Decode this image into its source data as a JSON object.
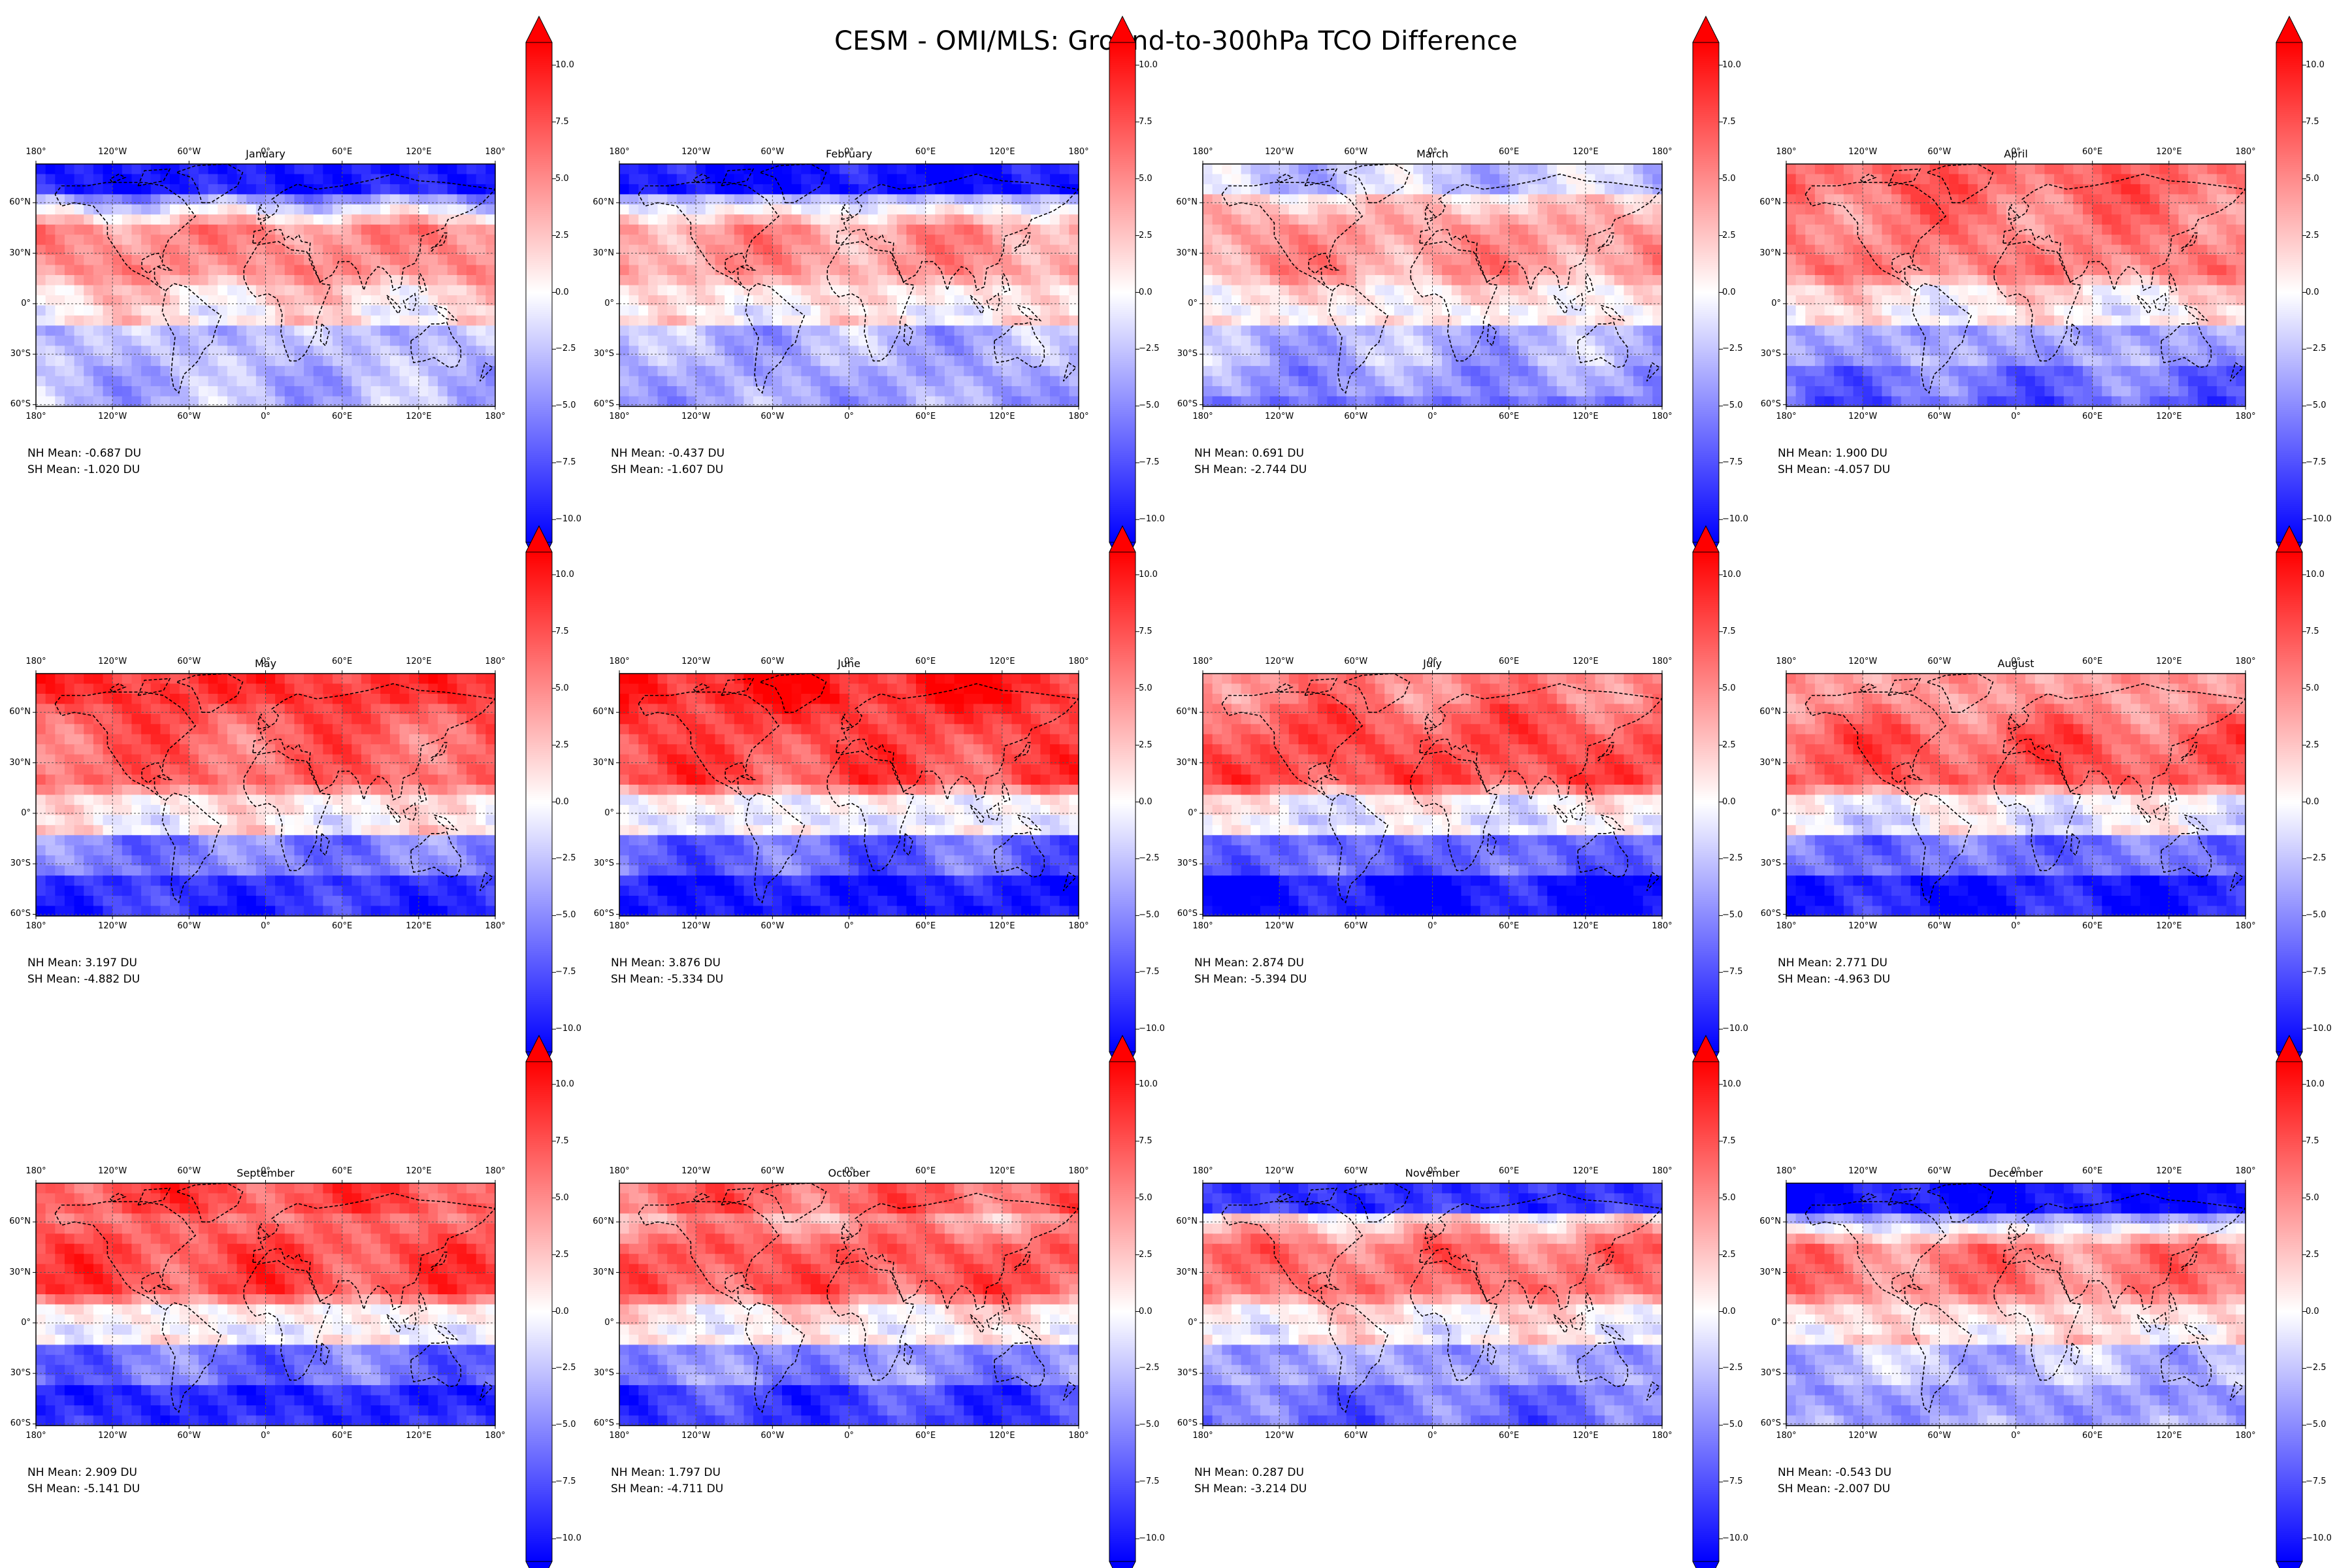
{
  "figure": {
    "title": "CESM - OMI/MLS: Ground-to-300hPa TCO Difference"
  },
  "axes": {
    "lon_ticks": [
      "180°",
      "120°W",
      "60°W",
      "0°",
      "60°E",
      "120°E",
      "180°"
    ],
    "lat_ticks": [
      "60°N",
      "30°N",
      "0°",
      "30°S",
      "60°S"
    ]
  },
  "colorbar": {
    "colormap": "bwr",
    "extend": "both",
    "vmin": -11,
    "vmax": 11,
    "ticks": [
      "10.0",
      "7.5",
      "5.0",
      "2.5",
      "0.0",
      "−2.5",
      "−5.0",
      "−7.5",
      "−10.0"
    ],
    "colors": {
      "low": "#0000ff",
      "mid": "#ffffff",
      "high": "#ff0000"
    }
  },
  "panels": [
    {
      "month": "January",
      "nh_mean": "NH Mean: -0.687 DU",
      "sh_mean": "SH Mean: -1.020 DU"
    },
    {
      "month": "February",
      "nh_mean": "NH Mean: -0.437 DU",
      "sh_mean": "SH Mean: -1.607 DU"
    },
    {
      "month": "March",
      "nh_mean": "NH Mean: 0.691 DU",
      "sh_mean": "SH Mean: -2.744 DU"
    },
    {
      "month": "April",
      "nh_mean": "NH Mean: 1.900 DU",
      "sh_mean": "SH Mean: -4.057 DU"
    },
    {
      "month": "May",
      "nh_mean": "NH Mean: 3.197 DU",
      "sh_mean": "SH Mean: -4.882 DU"
    },
    {
      "month": "June",
      "nh_mean": "NH Mean: 3.876 DU",
      "sh_mean": "SH Mean: -5.334 DU"
    },
    {
      "month": "July",
      "nh_mean": "NH Mean: 2.874 DU",
      "sh_mean": "SH Mean: -5.394 DU"
    },
    {
      "month": "August",
      "nh_mean": "NH Mean: 2.771 DU",
      "sh_mean": "SH Mean: -4.963 DU"
    },
    {
      "month": "September",
      "nh_mean": "NH Mean: 2.909 DU",
      "sh_mean": "SH Mean: -5.141 DU"
    },
    {
      "month": "October",
      "nh_mean": "NH Mean: 1.797 DU",
      "sh_mean": "SH Mean: -4.711 DU"
    },
    {
      "month": "November",
      "nh_mean": "NH Mean: 0.287 DU",
      "sh_mean": "SH Mean: -3.214 DU"
    },
    {
      "month": "December",
      "nh_mean": "NH Mean: -0.543 DU",
      "sh_mean": "SH Mean: -2.007 DU"
    }
  ]
}
